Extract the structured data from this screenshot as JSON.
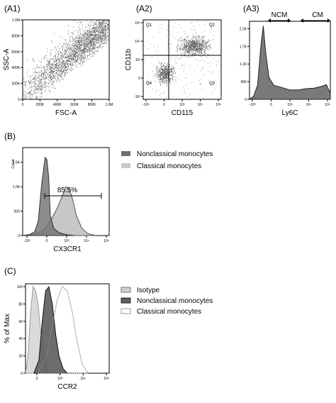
{
  "panel_labels": {
    "a1": "(A1)",
    "a2": "(A2)",
    "a3": "(A3)",
    "b": "(B)",
    "c": "(C)"
  },
  "colors": {
    "dark_gray": "#6f6f6f",
    "light_gray": "#c8c8c8",
    "gate": "#000000"
  },
  "chart_data": [
    {
      "type": "scatter",
      "panel": "(A1)",
      "xlabel": "FSC-A",
      "ylabel": "SSC-A",
      "xticks": [
        "0",
        "200K",
        "400K",
        "600K",
        "800K",
        "1.0M"
      ],
      "yticks": [
        "0",
        "200K",
        "400K",
        "600K",
        "800K",
        "1.0M"
      ],
      "xlim": [
        0,
        1000
      ],
      "ylim": [
        0,
        1000
      ],
      "density_note": "dense diagonal band from low FSC/SSC toward upper right"
    },
    {
      "type": "scatter",
      "panel": "(A2)",
      "xlabel": "CD115",
      "ylabel": "CD11b",
      "quadrants": [
        "Q1",
        "Q2",
        "Q3",
        "Q4"
      ],
      "xticks": [
        "-10³",
        "0",
        "10³",
        "10⁴",
        "10⁵"
      ],
      "yticks": [
        "-10³",
        "0",
        "10³",
        "10⁴",
        "10⁵"
      ],
      "clusters": [
        {
          "quadrant": "Q2",
          "x": [
            0.45,
            0.85
          ],
          "y": [
            0.55,
            0.8
          ]
        },
        {
          "quadrant": "Q4",
          "x": [
            0.15,
            0.4
          ],
          "y": [
            0.2,
            0.45
          ]
        }
      ]
    },
    {
      "type": "area",
      "panel": "(A3)",
      "xlabel": "Ly6C",
      "gates": [
        "NCM",
        "CM"
      ],
      "yticks": [
        "0",
        "566",
        "1.1K",
        "1.7K",
        "2.2K"
      ],
      "xticks": [
        "-10³",
        "0",
        "10³",
        "10⁴",
        "10⁵"
      ],
      "x": [
        0,
        0.05,
        0.1,
        0.14,
        0.17,
        0.2,
        0.24,
        0.3,
        0.4,
        0.5,
        0.6,
        0.7,
        0.8,
        0.9,
        0.95,
        1
      ],
      "y": [
        0,
        100,
        450,
        1700,
        2350,
        1500,
        700,
        450,
        380,
        300,
        300,
        340,
        360,
        420,
        470,
        200
      ]
    },
    {
      "type": "area",
      "panel": "(B)",
      "xlabel": "CX3CR1",
      "ylabel": "Count",
      "yticks": [
        "0",
        "500",
        "1.0K",
        "1.5K"
      ],
      "xticks": [
        "-10³",
        "0",
        "10³",
        "10⁴",
        "10⁵"
      ],
      "annotation": "85.5%",
      "series": [
        {
          "name": "Nonclassical monocytes",
          "x": [
            0,
            0.08,
            0.14,
            0.18,
            0.22,
            0.26,
            0.28,
            0.3,
            0.32,
            0.36,
            0.42,
            0.5,
            0.6
          ],
          "y": [
            0,
            20,
            80,
            300,
            1050,
            1600,
            1550,
            1200,
            400,
            150,
            60,
            20,
            0
          ]
        },
        {
          "name": "Classical monocytes",
          "x": [
            0,
            0.15,
            0.25,
            0.32,
            0.4,
            0.46,
            0.5,
            0.54,
            0.58,
            0.62,
            0.68,
            0.75,
            0.85
          ],
          "y": [
            0,
            30,
            120,
            300,
            560,
            820,
            1000,
            960,
            720,
            420,
            160,
            40,
            0
          ]
        }
      ]
    },
    {
      "type": "area",
      "panel": "(C)",
      "xlabel": "CCR2",
      "ylabel": "% of Max",
      "yticks": [
        "0",
        "20",
        "40",
        "60",
        "80",
        "100"
      ],
      "xticks": [
        "0",
        "10³",
        "10⁴",
        "10⁵"
      ],
      "ylim": [
        0,
        100
      ],
      "series": [
        {
          "name": "Isotype",
          "x": [
            0.0,
            0.03,
            0.06,
            0.09,
            0.12,
            0.15,
            0.18,
            0.22,
            0.26,
            0.3
          ],
          "y": [
            0,
            20,
            70,
            100,
            95,
            80,
            50,
            20,
            5,
            0
          ]
        },
        {
          "name": "Nonclassical monocytes",
          "x": [
            0.1,
            0.16,
            0.2,
            0.24,
            0.28,
            0.32,
            0.36,
            0.4,
            0.45,
            0.5
          ],
          "y": [
            0,
            15,
            60,
            95,
            100,
            80,
            45,
            20,
            5,
            0
          ]
        },
        {
          "name": "Classical monocytes",
          "x": [
            0.15,
            0.25,
            0.32,
            0.38,
            0.44,
            0.5,
            0.56,
            0.62,
            0.68,
            0.75
          ],
          "y": [
            0,
            20,
            55,
            85,
            100,
            95,
            70,
            35,
            10,
            0
          ]
        }
      ]
    }
  ]
}
